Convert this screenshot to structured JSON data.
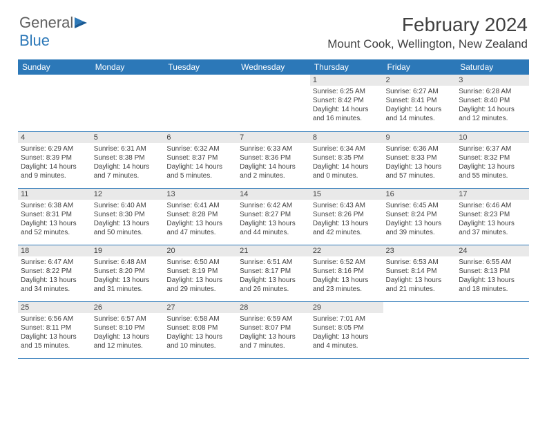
{
  "logo": {
    "text1": "General",
    "text2": "Blue"
  },
  "title": {
    "month": "February 2024",
    "location": "Mount Cook, Wellington, New Zealand"
  },
  "colors": {
    "accent": "#2c78b8",
    "header_bg": "#2c78b8",
    "daynum_bg": "#e9e9e9",
    "text": "#404040"
  },
  "weekdays": [
    "Sunday",
    "Monday",
    "Tuesday",
    "Wednesday",
    "Thursday",
    "Friday",
    "Saturday"
  ],
  "cells": [
    null,
    null,
    null,
    null,
    {
      "n": "1",
      "sunrise": "6:25 AM",
      "sunset": "8:42 PM",
      "dlh": "14",
      "dlm": "16"
    },
    {
      "n": "2",
      "sunrise": "6:27 AM",
      "sunset": "8:41 PM",
      "dlh": "14",
      "dlm": "14"
    },
    {
      "n": "3",
      "sunrise": "6:28 AM",
      "sunset": "8:40 PM",
      "dlh": "14",
      "dlm": "12"
    },
    {
      "n": "4",
      "sunrise": "6:29 AM",
      "sunset": "8:39 PM",
      "dlh": "14",
      "dlm": "9"
    },
    {
      "n": "5",
      "sunrise": "6:31 AM",
      "sunset": "8:38 PM",
      "dlh": "14",
      "dlm": "7"
    },
    {
      "n": "6",
      "sunrise": "6:32 AM",
      "sunset": "8:37 PM",
      "dlh": "14",
      "dlm": "5"
    },
    {
      "n": "7",
      "sunrise": "6:33 AM",
      "sunset": "8:36 PM",
      "dlh": "14",
      "dlm": "2"
    },
    {
      "n": "8",
      "sunrise": "6:34 AM",
      "sunset": "8:35 PM",
      "dlh": "14",
      "dlm": "0"
    },
    {
      "n": "9",
      "sunrise": "6:36 AM",
      "sunset": "8:33 PM",
      "dlh": "13",
      "dlm": "57"
    },
    {
      "n": "10",
      "sunrise": "6:37 AM",
      "sunset": "8:32 PM",
      "dlh": "13",
      "dlm": "55"
    },
    {
      "n": "11",
      "sunrise": "6:38 AM",
      "sunset": "8:31 PM",
      "dlh": "13",
      "dlm": "52"
    },
    {
      "n": "12",
      "sunrise": "6:40 AM",
      "sunset": "8:30 PM",
      "dlh": "13",
      "dlm": "50"
    },
    {
      "n": "13",
      "sunrise": "6:41 AM",
      "sunset": "8:28 PM",
      "dlh": "13",
      "dlm": "47"
    },
    {
      "n": "14",
      "sunrise": "6:42 AM",
      "sunset": "8:27 PM",
      "dlh": "13",
      "dlm": "44"
    },
    {
      "n": "15",
      "sunrise": "6:43 AM",
      "sunset": "8:26 PM",
      "dlh": "13",
      "dlm": "42"
    },
    {
      "n": "16",
      "sunrise": "6:45 AM",
      "sunset": "8:24 PM",
      "dlh": "13",
      "dlm": "39"
    },
    {
      "n": "17",
      "sunrise": "6:46 AM",
      "sunset": "8:23 PM",
      "dlh": "13",
      "dlm": "37"
    },
    {
      "n": "18",
      "sunrise": "6:47 AM",
      "sunset": "8:22 PM",
      "dlh": "13",
      "dlm": "34"
    },
    {
      "n": "19",
      "sunrise": "6:48 AM",
      "sunset": "8:20 PM",
      "dlh": "13",
      "dlm": "31"
    },
    {
      "n": "20",
      "sunrise": "6:50 AM",
      "sunset": "8:19 PM",
      "dlh": "13",
      "dlm": "29"
    },
    {
      "n": "21",
      "sunrise": "6:51 AM",
      "sunset": "8:17 PM",
      "dlh": "13",
      "dlm": "26"
    },
    {
      "n": "22",
      "sunrise": "6:52 AM",
      "sunset": "8:16 PM",
      "dlh": "13",
      "dlm": "23"
    },
    {
      "n": "23",
      "sunrise": "6:53 AM",
      "sunset": "8:14 PM",
      "dlh": "13",
      "dlm": "21"
    },
    {
      "n": "24",
      "sunrise": "6:55 AM",
      "sunset": "8:13 PM",
      "dlh": "13",
      "dlm": "18"
    },
    {
      "n": "25",
      "sunrise": "6:56 AM",
      "sunset": "8:11 PM",
      "dlh": "13",
      "dlm": "15"
    },
    {
      "n": "26",
      "sunrise": "6:57 AM",
      "sunset": "8:10 PM",
      "dlh": "13",
      "dlm": "12"
    },
    {
      "n": "27",
      "sunrise": "6:58 AM",
      "sunset": "8:08 PM",
      "dlh": "13",
      "dlm": "10"
    },
    {
      "n": "28",
      "sunrise": "6:59 AM",
      "sunset": "8:07 PM",
      "dlh": "13",
      "dlm": "7"
    },
    {
      "n": "29",
      "sunrise": "7:01 AM",
      "sunset": "8:05 PM",
      "dlh": "13",
      "dlm": "4"
    },
    null,
    null
  ]
}
